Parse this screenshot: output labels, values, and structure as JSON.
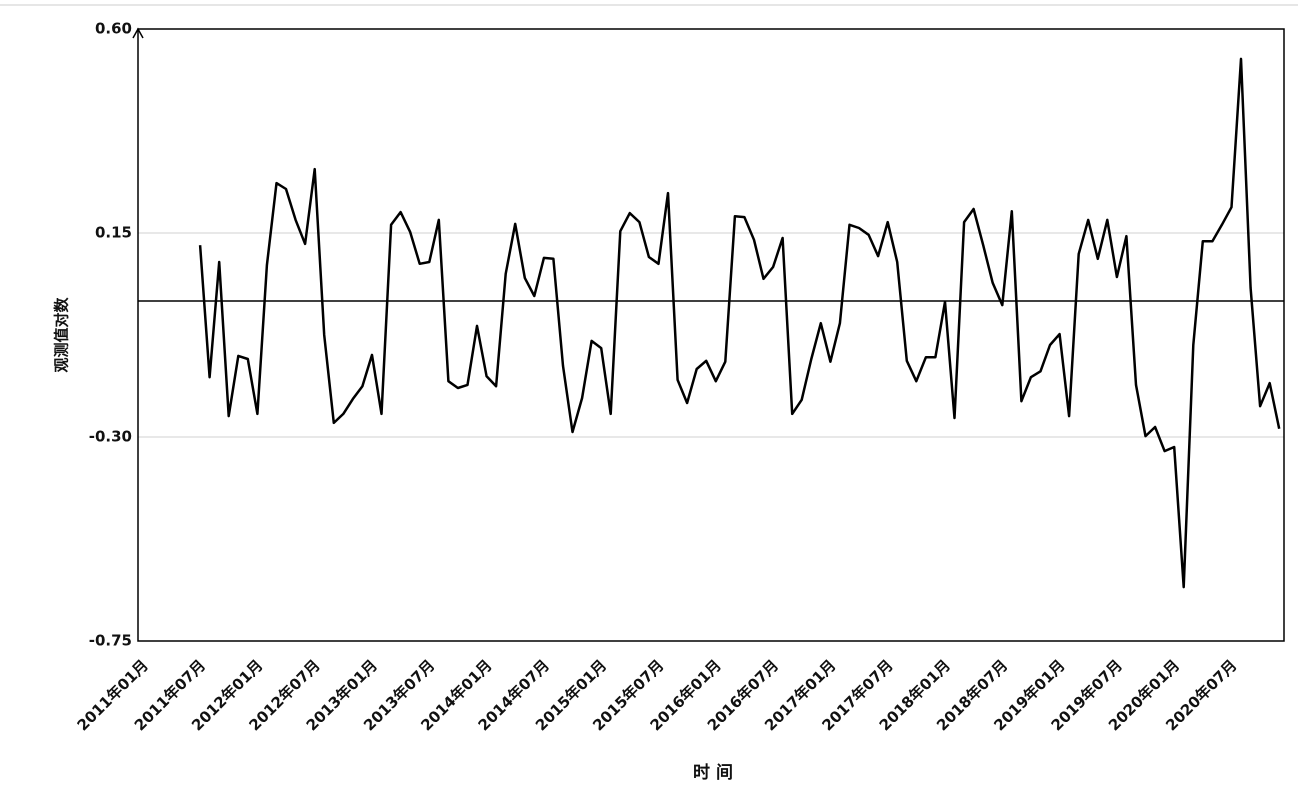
{
  "chart_data": {
    "type": "line",
    "x_label": "时 间",
    "y_label": "观测值对数",
    "categories": [
      "2011年01月",
      null,
      null,
      null,
      null,
      null,
      "2011年07月",
      null,
      null,
      null,
      null,
      null,
      "2012年01月",
      null,
      null,
      null,
      null,
      null,
      "2012年07月",
      null,
      null,
      null,
      null,
      null,
      "2013年01月",
      null,
      null,
      null,
      null,
      null,
      "2013年07月",
      null,
      null,
      null,
      null,
      null,
      "2014年01月",
      null,
      null,
      null,
      null,
      null,
      "2014年07月",
      null,
      null,
      null,
      null,
      null,
      "2015年01月",
      null,
      null,
      null,
      null,
      null,
      "2015年07月",
      null,
      null,
      null,
      null,
      null,
      "2016年01月",
      null,
      null,
      null,
      null,
      null,
      "2016年07月",
      null,
      null,
      null,
      null,
      null,
      "2017年01月",
      null,
      null,
      null,
      null,
      null,
      "2017年07月",
      null,
      null,
      null,
      null,
      null,
      "2018年01月",
      null,
      null,
      null,
      null,
      null,
      "2018年07月",
      null,
      null,
      null,
      null,
      null,
      "2019年01月",
      null,
      null,
      null,
      null,
      null,
      "2019年07月",
      null,
      null,
      null,
      null,
      null,
      "2020年01月",
      null,
      null,
      null,
      null,
      null,
      "2020年07月",
      null,
      null,
      null,
      null,
      null
    ],
    "series": [
      {
        "color": "#000000",
        "values": [
          null,
          null,
          null,
          null,
          null,
          null,
          0.123,
          -0.168,
          0.086,
          -0.254,
          -0.121,
          -0.128,
          -0.249,
          0.079,
          0.26,
          0.247,
          0.179,
          0.126,
          0.291,
          -0.075,
          -0.269,
          -0.249,
          -0.216,
          -0.188,
          -0.119,
          -0.249,
          0.168,
          0.196,
          0.152,
          0.082,
          0.086,
          0.179,
          -0.177,
          -0.192,
          -0.185,
          -0.055,
          -0.166,
          -0.188,
          0.06,
          0.17,
          0.051,
          0.011,
          0.095,
          0.093,
          -0.143,
          -0.289,
          -0.214,
          -0.088,
          -0.104,
          -0.249,
          0.154,
          0.194,
          0.174,
          0.097,
          0.082,
          0.238,
          -0.174,
          -0.225,
          -0.15,
          -0.132,
          -0.177,
          -0.134,
          0.187,
          0.185,
          0.135,
          0.049,
          0.075,
          0.139,
          -0.249,
          -0.218,
          -0.128,
          -0.049,
          -0.134,
          -0.049,
          0.168,
          0.161,
          0.146,
          0.099,
          0.174,
          0.086,
          -0.132,
          -0.177,
          -0.124,
          -0.124,
          -0.002,
          -0.258,
          0.174,
          0.203,
          0.123,
          0.04,
          -0.009,
          0.198,
          -0.221,
          -0.168,
          -0.155,
          -0.097,
          -0.073,
          -0.254,
          0.104,
          0.179,
          0.093,
          0.179,
          0.053,
          0.143,
          -0.185,
          -0.298,
          -0.278,
          -0.331,
          -0.322,
          -0.631,
          -0.097,
          0.132,
          0.132,
          0.168,
          0.207,
          0.534,
          0.029,
          -0.232,
          -0.181,
          -0.282
        ]
      }
    ],
    "ylim": [
      -0.75,
      0.6
    ],
    "yticks": [
      {
        "value": -0.75,
        "label": "-0.75"
      },
      {
        "value": -0.3,
        "label": "-0.30"
      },
      {
        "value": 0.15,
        "label": "0.15"
      },
      {
        "value": 0.6,
        "label": "0.60"
      }
    ],
    "hline": 0,
    "grid": true
  }
}
